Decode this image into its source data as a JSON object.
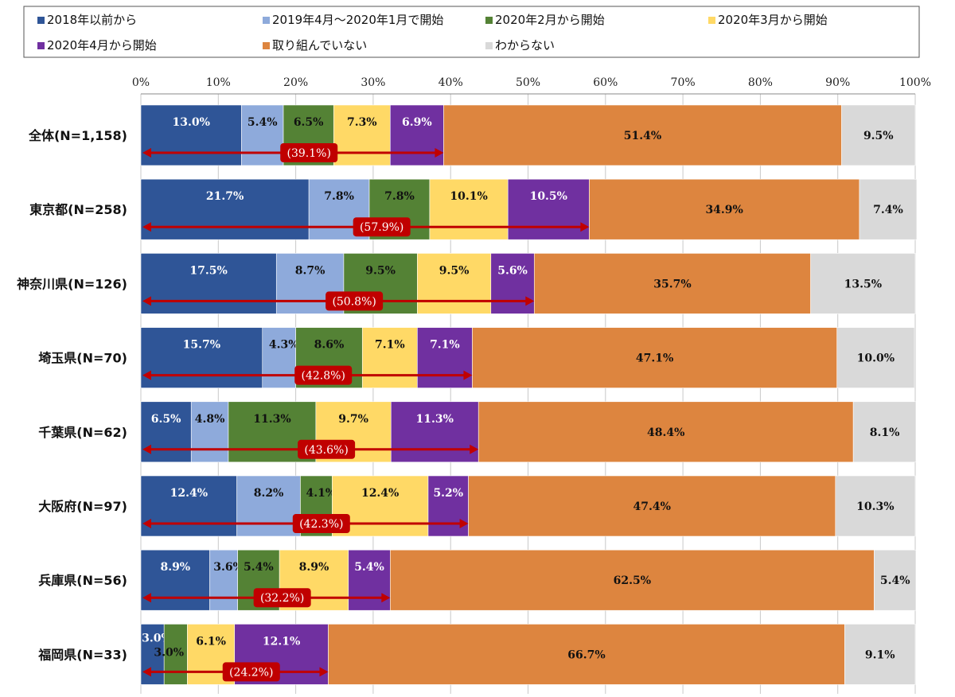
{
  "chart_data": {
    "type": "bar",
    "orientation": "horizontal",
    "stacked": true,
    "xlim": [
      0,
      100
    ],
    "x_ticks": [
      "0%",
      "10%",
      "20%",
      "30%",
      "40%",
      "50%",
      "60%",
      "70%",
      "80%",
      "90%",
      "100%"
    ],
    "grid": true,
    "legend_position": "top",
    "categories": [
      "全体(N=1,158)",
      "東京都(N=258)",
      "神奈川県(N=126)",
      "埼玉県(N=70)",
      "千葉県(N=62)",
      "大阪府(N=97)",
      "兵庫県(N=56)",
      "福岡県(N=33)"
    ],
    "series": [
      {
        "name": "2018年以前から",
        "color": "#2f5597",
        "label_color": "#ffffff",
        "values": [
          13.0,
          21.7,
          17.5,
          15.7,
          6.5,
          12.4,
          8.9,
          3.0
        ]
      },
      {
        "name": "2019年4月～2020年1月で開始",
        "color": "#8eaadb",
        "label_color": "#111111",
        "values": [
          5.4,
          7.8,
          8.7,
          4.3,
          4.8,
          8.2,
          3.6,
          0.0
        ]
      },
      {
        "name": "2020年2月から開始",
        "color": "#548235",
        "label_color": "#111111",
        "values": [
          6.5,
          7.8,
          9.5,
          8.6,
          11.3,
          4.1,
          5.4,
          3.0
        ]
      },
      {
        "name": "2020年3月から開始",
        "color": "#ffd966",
        "label_color": "#111111",
        "values": [
          7.3,
          10.1,
          9.5,
          7.1,
          9.7,
          12.4,
          8.9,
          6.1
        ]
      },
      {
        "name": "2020年4月から開始",
        "color": "#7030a0",
        "label_color": "#ffffff",
        "values": [
          6.9,
          10.5,
          5.6,
          7.1,
          11.3,
          5.2,
          5.4,
          12.1
        ]
      },
      {
        "name": "取り組んでいない",
        "color": "#dd853f",
        "label_color": "#111111",
        "values": [
          51.4,
          34.9,
          35.7,
          47.1,
          48.4,
          47.4,
          62.5,
          66.7
        ]
      },
      {
        "name": "わからない",
        "color": "#d9d9d9",
        "label_color": "#111111",
        "values": [
          9.5,
          7.4,
          13.5,
          10.0,
          8.1,
          10.3,
          5.4,
          9.1
        ]
      }
    ],
    "data_labels": [
      [
        "13.0%",
        "5.4%",
        "6.5%",
        "7.3%",
        "6.9%",
        "51.4%",
        "9.5%"
      ],
      [
        "21.7%",
        "7.8%",
        "7.8%",
        "10.1%",
        "10.5%",
        "34.9%",
        "7.4%"
      ],
      [
        "17.5%",
        "8.7%",
        "9.5%",
        "9.5%",
        "5.6%",
        "35.7%",
        "13.5%"
      ],
      [
        "15.7%",
        "4.3%",
        "8.6%",
        "7.1%",
        "7.1%",
        "47.1%",
        "10.0%"
      ],
      [
        "6.5%",
        "4.8%",
        "11.3%",
        "9.7%",
        "11.3%",
        "48.4%",
        "8.1%"
      ],
      [
        "12.4%",
        "8.2%",
        "4.1%",
        "12.4%",
        "5.2%",
        "47.4%",
        "10.3%"
      ],
      [
        "8.9%",
        "3.6%",
        "5.4%",
        "8.9%",
        "5.4%",
        "62.5%",
        "5.4%"
      ],
      [
        "3.0%",
        "",
        "3.0%",
        "6.1%",
        "12.1%",
        "66.7%",
        "9.1%"
      ]
    ],
    "cumulative": {
      "color": "#c00000",
      "values": [
        39.1,
        57.9,
        50.8,
        42.8,
        43.6,
        42.3,
        32.2,
        24.2
      ],
      "labels": [
        "(39.1%)",
        "(57.9%)",
        "(50.8%)",
        "(42.8%)",
        "(43.6%)",
        "(42.3%)",
        "(32.2%)",
        "(24.2%)"
      ]
    }
  }
}
